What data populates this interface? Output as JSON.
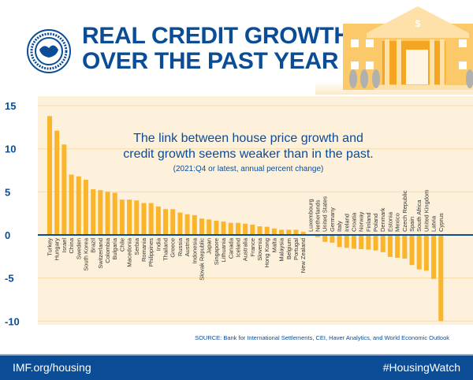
{
  "header": {
    "title_line1": "REAL CREDIT GROWTH",
    "title_line2": "OVER THE PAST YEAR",
    "logo_text": "INTERNATIONAL MONETARY FUND"
  },
  "chart_data": {
    "type": "bar",
    "title": "The link between house price growth and credit growth seems weaker than in the past.",
    "subtitle": "(2021:Q4 or latest, annual percent change)",
    "xlabel": "",
    "ylabel": "",
    "ylim": [
      -10,
      15
    ],
    "yticks": [
      15,
      10,
      5,
      0,
      -5,
      -10
    ],
    "grid": true,
    "colors": {
      "bar": "#fbb52b",
      "zero_line": "#0b4c97",
      "grid": "#f9dca6"
    },
    "categories": [
      "Turkey",
      "Hungary",
      "Israel",
      "China",
      "Sweden",
      "South Korea",
      "Brazil",
      "Switzerland",
      "Colombia",
      "Bulgaria",
      "Chile",
      "Macedonia",
      "Serbia",
      "Romania",
      "Philippines",
      "India",
      "Thailand",
      "Greece",
      "Russia",
      "Austria",
      "Indonesia",
      "Slovak Republic",
      "Japan",
      "Singapore",
      "Lithuania",
      "Canada",
      "Iceland",
      "Australia",
      "France",
      "Slovenia",
      "Hong Kong",
      "Malta",
      "Malaysia",
      "Belgium",
      "Portugal",
      "New Zealand",
      "Luxembourg",
      "Netherlands",
      "United States",
      "Germany",
      "Italy",
      "Ireland",
      "Croatia",
      "Norway",
      "Finland",
      "Poland",
      "Denmark",
      "Estonia",
      "Mexico",
      "Czech Republic",
      "Spain",
      "South Africa",
      "United Kingdom",
      "Latvia",
      "Cyprus"
    ],
    "values": [
      13.8,
      12.1,
      10.5,
      7.0,
      6.8,
      6.4,
      5.3,
      5.2,
      5.0,
      4.9,
      4.1,
      4.1,
      4.0,
      3.7,
      3.7,
      3.3,
      3.0,
      3.0,
      2.6,
      2.4,
      2.3,
      1.9,
      1.8,
      1.65,
      1.55,
      1.4,
      1.4,
      1.3,
      1.2,
      1.0,
      0.95,
      0.75,
      0.6,
      0.6,
      0.6,
      0.35,
      -0.1,
      -0.25,
      -0.8,
      -0.9,
      -1.4,
      -1.5,
      -1.6,
      -1.65,
      -1.7,
      -1.8,
      -2.0,
      -2.55,
      -2.65,
      -2.75,
      -3.5,
      -4.0,
      -4.15,
      -5.1,
      -10.0
    ]
  },
  "source": "SOURCE: Bank for International Settlements, CEI, Haver Analytics, and World Economic Outlook",
  "footer": {
    "left": "IMF.org/housing",
    "right": "#HousingWatch"
  }
}
